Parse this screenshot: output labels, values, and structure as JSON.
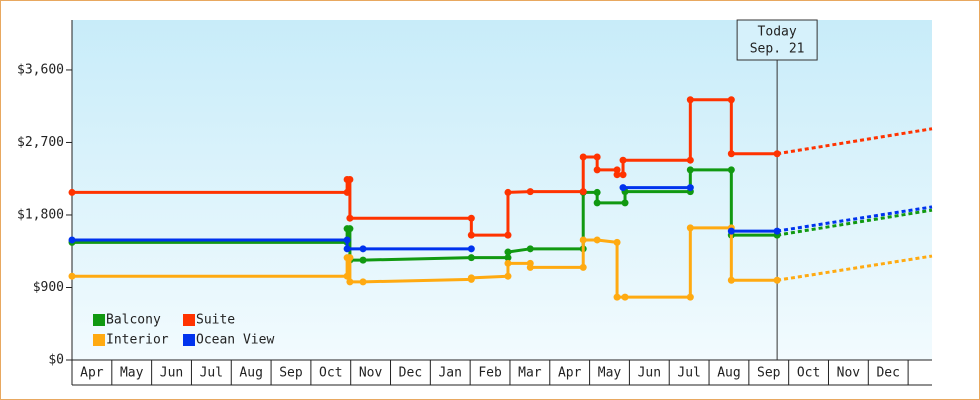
{
  "chart_data": {
    "type": "line",
    "step": true,
    "xlim": [
      0,
      21.6
    ],
    "ylim": [
      0,
      4220
    ],
    "yticks": [
      {
        "value": 0,
        "label": "$0"
      },
      {
        "value": 900,
        "label": "$900"
      },
      {
        "value": 1800,
        "label": "$1,800"
      },
      {
        "value": 2700,
        "label": "$2,700"
      },
      {
        "value": 3600,
        "label": "$3,600"
      }
    ],
    "xticks": [
      {
        "value": 0.5,
        "label": "Apr"
      },
      {
        "value": 1.5,
        "label": "May"
      },
      {
        "value": 2.5,
        "label": "Jun"
      },
      {
        "value": 3.5,
        "label": "Jul"
      },
      {
        "value": 4.5,
        "label": "Aug"
      },
      {
        "value": 5.5,
        "label": "Sep"
      },
      {
        "value": 6.5,
        "label": "Oct"
      },
      {
        "value": 7.5,
        "label": "Nov"
      },
      {
        "value": 8.5,
        "label": "Dec"
      },
      {
        "value": 9.5,
        "label": "Jan"
      },
      {
        "value": 10.5,
        "label": "Feb"
      },
      {
        "value": 11.5,
        "label": "Mar"
      },
      {
        "value": 12.5,
        "label": "Apr"
      },
      {
        "value": 13.5,
        "label": "May"
      },
      {
        "value": 14.5,
        "label": "Jun"
      },
      {
        "value": 15.5,
        "label": "Jul"
      },
      {
        "value": 16.5,
        "label": "Aug"
      },
      {
        "value": 17.5,
        "label": "Sep"
      },
      {
        "value": 18.5,
        "label": "Oct"
      },
      {
        "value": 19.5,
        "label": "Nov"
      },
      {
        "value": 20.5,
        "label": "Dec"
      }
    ],
    "legend": "lower left",
    "annotation": {
      "x": 17.71,
      "lines": [
        "Today",
        "Sep. 21"
      ]
    },
    "series": [
      {
        "name": "Balcony",
        "color": "#119911",
        "x": [
          0,
          6.91,
          6.91,
          6.98,
          6.98,
          7.31,
          10.03,
          10.95,
          10.95,
          11.51,
          12.84,
          12.84,
          13.19,
          13.19,
          13.89,
          13.89,
          15.53,
          15.53,
          16.56,
          16.56,
          17.71
        ],
        "values": [
          1460,
          1460,
          1630,
          1630,
          1240,
          1240,
          1270,
          1270,
          1340,
          1380,
          1380,
          2080,
          2080,
          1950,
          1950,
          2090,
          2090,
          2360,
          2360,
          1550,
          1550
        ],
        "forecast": {
          "x": [
            17.71,
            21.6
          ],
          "values": [
            1550,
            1860
          ]
        }
      },
      {
        "name": "Suite",
        "color": "#ff3300",
        "x": [
          0,
          6.91,
          6.91,
          6.98,
          6.98,
          10.03,
          10.03,
          10.95,
          10.95,
          11.51,
          12.84,
          12.84,
          13.19,
          13.19,
          13.69,
          13.69,
          13.84,
          13.84,
          15.53,
          15.53,
          16.56,
          16.56,
          17.71
        ],
        "values": [
          2080,
          2080,
          2240,
          2240,
          1760,
          1760,
          1550,
          1550,
          2080,
          2090,
          2090,
          2520,
          2520,
          2360,
          2360,
          2300,
          2300,
          2480,
          2480,
          3230,
          3230,
          2560,
          2560
        ],
        "forecast": {
          "x": [
            17.71,
            21.6
          ],
          "values": [
            2560,
            2870
          ]
        }
      },
      {
        "name": "Interior",
        "color": "#ffaa11",
        "x": [
          0,
          6.91,
          6.91,
          6.98,
          6.98,
          7.31,
          10.03,
          10.03,
          10.95,
          10.95,
          11.51,
          11.51,
          12.84,
          12.84,
          13.19,
          13.69,
          13.69,
          13.89,
          15.53,
          15.53,
          16.56,
          16.56,
          17.71
        ],
        "values": [
          1040,
          1040,
          1270,
          1270,
          970,
          970,
          1000,
          1020,
          1040,
          1200,
          1200,
          1150,
          1150,
          1490,
          1490,
          1460,
          780,
          780,
          780,
          1640,
          1640,
          990,
          990
        ],
        "forecast": {
          "x": [
            17.71,
            21.6
          ],
          "values": [
            990,
            1290
          ]
        }
      },
      {
        "name": "Ocean View",
        "color": "#0033ee",
        "x": [
          0,
          6.91,
          6.91,
          7.31,
          10.03,
          null,
          13.84,
          15.53,
          null,
          16.56,
          17.71
        ],
        "values": [
          1490,
          1490,
          1380,
          1380,
          1380,
          null,
          2140,
          2140,
          null,
          1600,
          1600
        ],
        "forecast": {
          "x": [
            17.71,
            21.6
          ],
          "values": [
            1600,
            1900
          ]
        }
      }
    ]
  }
}
